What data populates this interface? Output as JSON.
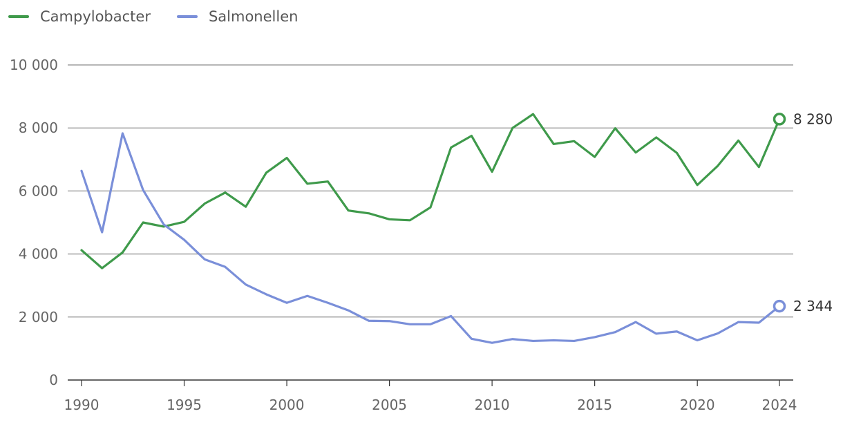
{
  "chart_data": {
    "type": "line",
    "title": "",
    "xlabel": "",
    "ylabel": "",
    "ylim": [
      0,
      10000
    ],
    "xlim": [
      1990,
      2024
    ],
    "yticks": [
      0,
      2000,
      4000,
      6000,
      8000,
      10000
    ],
    "ytick_labels": [
      "0",
      "2 000",
      "4 000",
      "6 000",
      "8 000",
      "10 000"
    ],
    "xticks": [
      1990,
      1995,
      2000,
      2005,
      2010,
      2015,
      2020,
      2024
    ],
    "xtick_labels": [
      "1990",
      "1995",
      "2000",
      "2005",
      "2010",
      "2015",
      "2020",
      "2024"
    ],
    "grid": true,
    "legend_position": "top-left",
    "x": [
      1990,
      1991,
      1992,
      1993,
      1994,
      1995,
      1996,
      1997,
      1998,
      1999,
      2000,
      2001,
      2002,
      2003,
      2004,
      2005,
      2006,
      2007,
      2008,
      2009,
      2010,
      2011,
      2012,
      2013,
      2014,
      2015,
      2016,
      2017,
      2018,
      2019,
      2020,
      2021,
      2022,
      2023,
      2024
    ],
    "series": [
      {
        "name": "Campylobacter",
        "color": "#3f9a4b",
        "values": [
          4120,
          3550,
          4050,
          5000,
          4870,
          5020,
          5600,
          5950,
          5500,
          6580,
          7050,
          6230,
          6300,
          5380,
          5290,
          5100,
          5070,
          5480,
          7380,
          7750,
          6610,
          8000,
          8440,
          7490,
          7580,
          7080,
          7990,
          7220,
          7700,
          7210,
          6190,
          6800,
          7600,
          6760,
          8280
        ],
        "end_label": "8 280"
      },
      {
        "name": "Salmonellen",
        "color": "#7a8fd9",
        "values": [
          6640,
          4690,
          7830,
          6030,
          4940,
          4450,
          3830,
          3590,
          3030,
          2720,
          2450,
          2670,
          2450,
          2210,
          1880,
          1870,
          1770,
          1770,
          2030,
          1310,
          1180,
          1300,
          1240,
          1260,
          1240,
          1360,
          1520,
          1840,
          1470,
          1540,
          1260,
          1480,
          1840,
          1820,
          2344
        ],
        "end_label": "2 344"
      }
    ]
  }
}
